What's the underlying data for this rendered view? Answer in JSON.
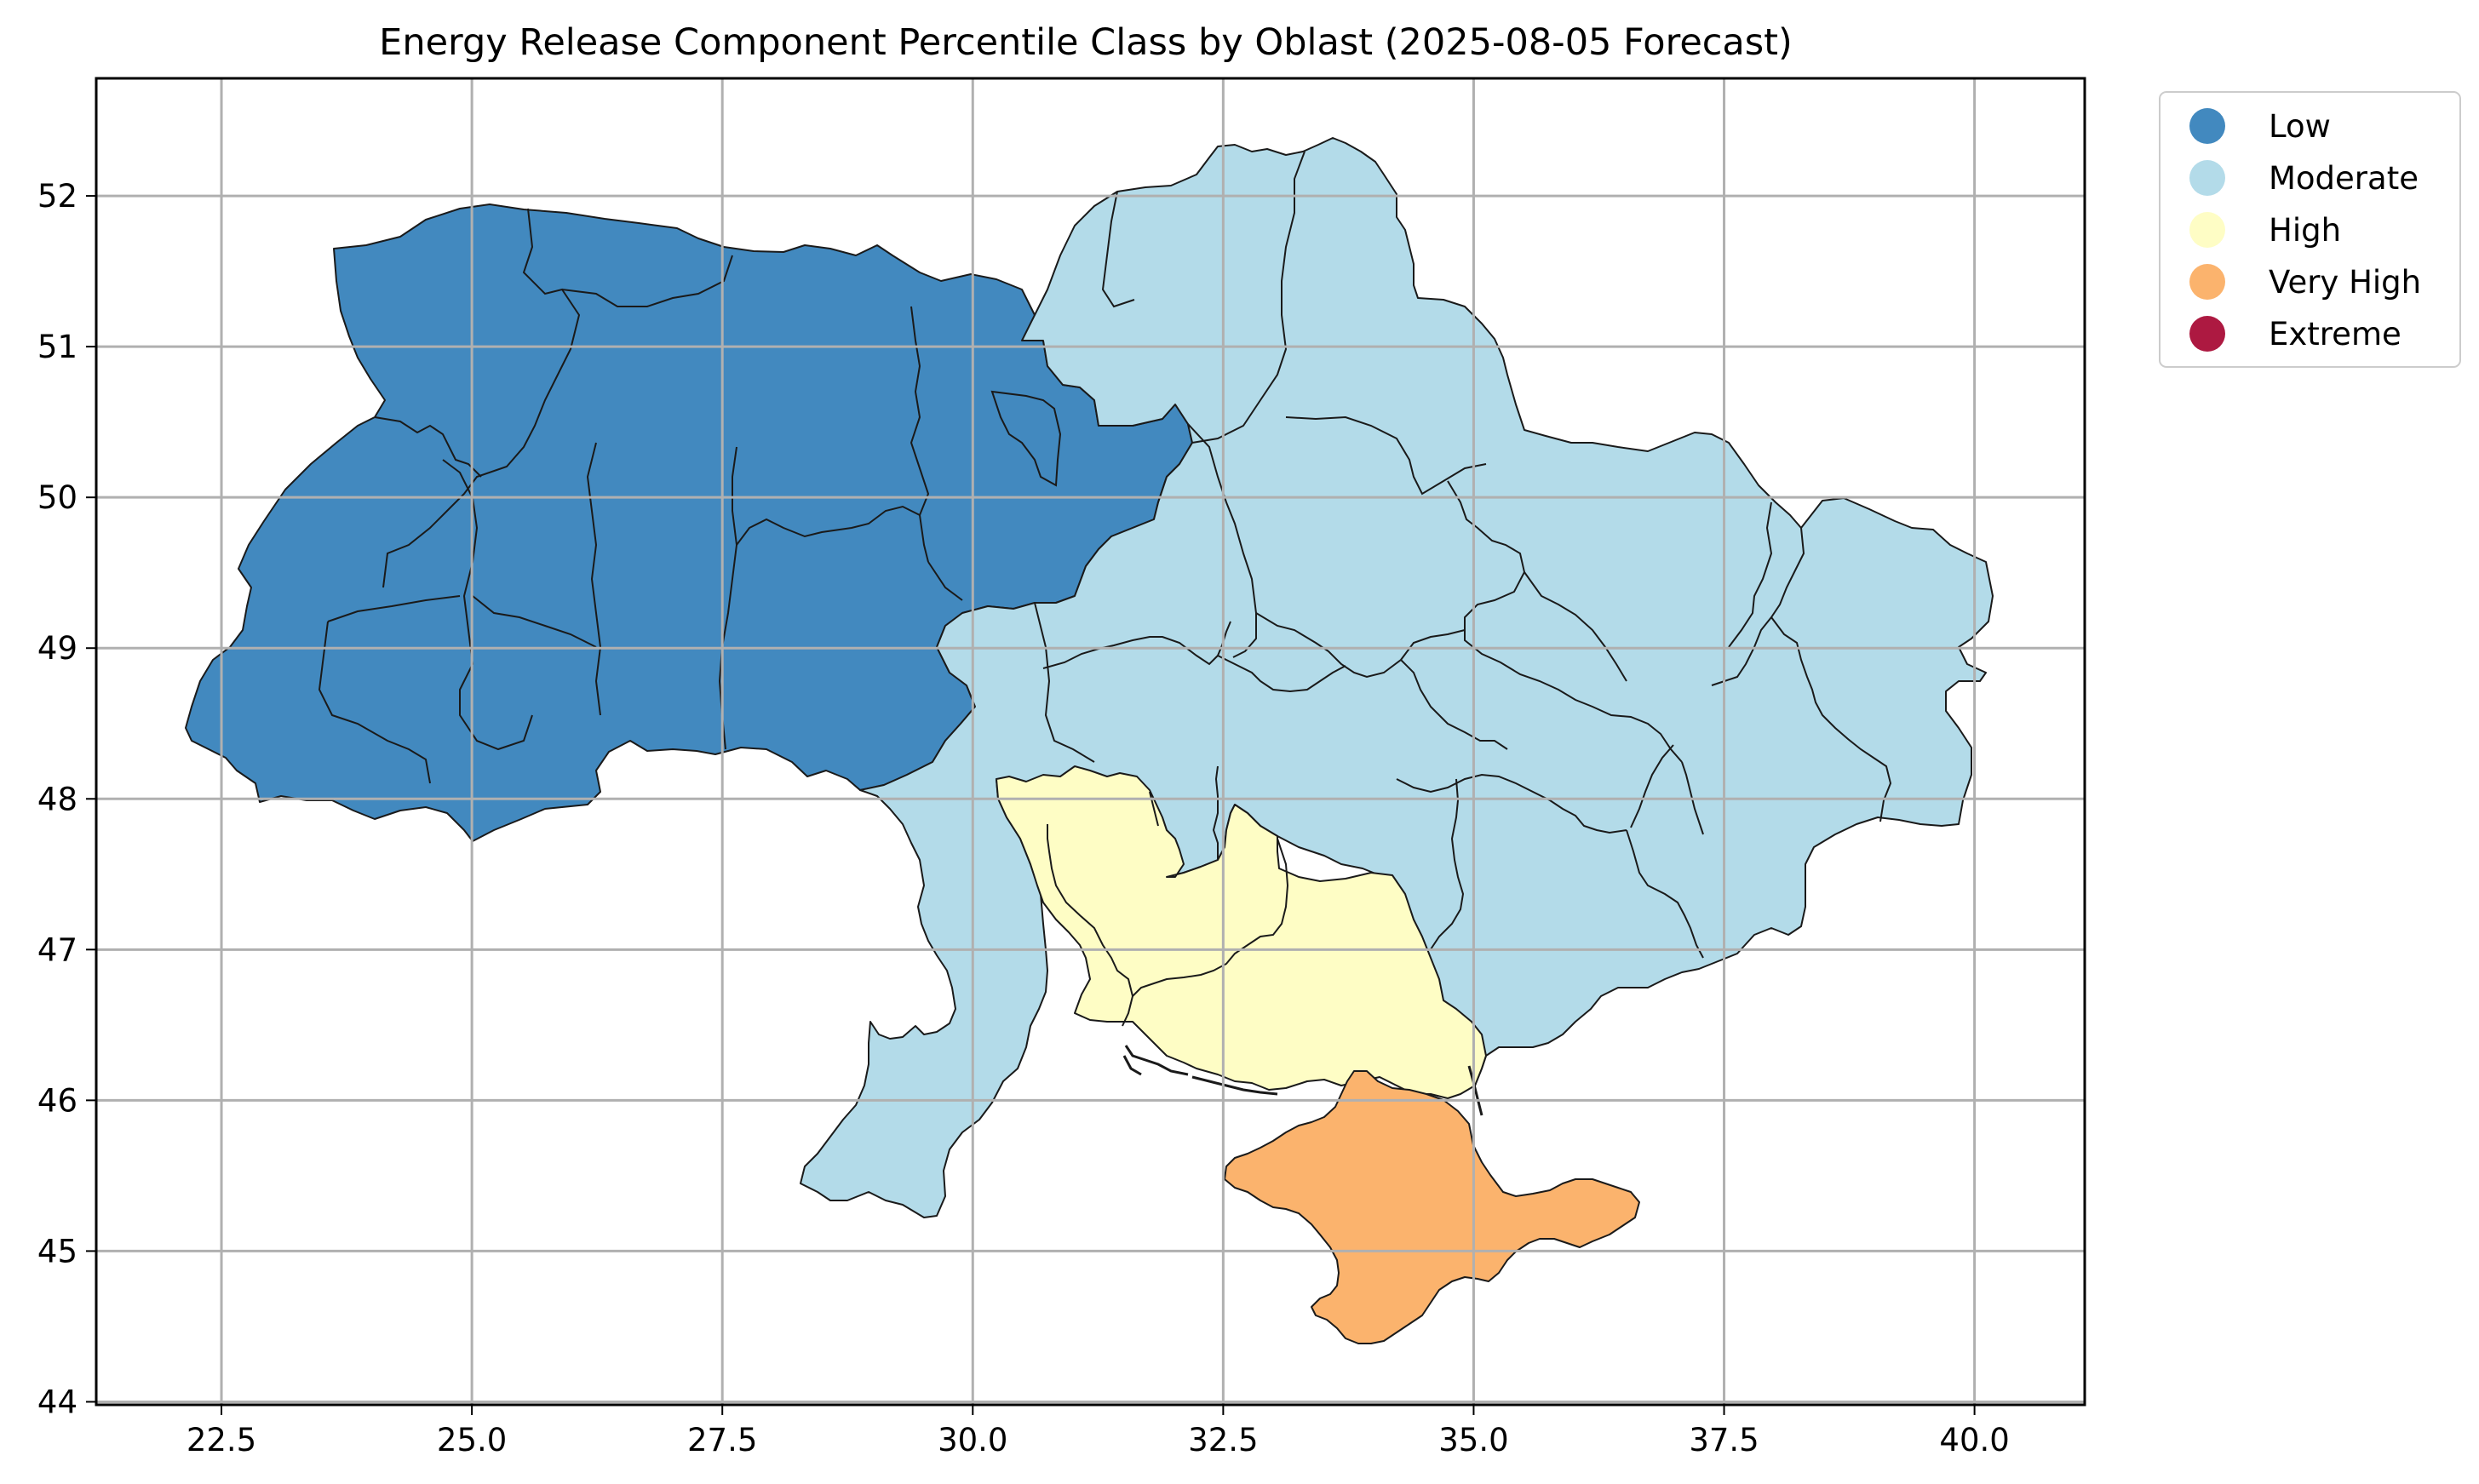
{
  "title": "Energy Release Component Percentile Class by Oblast (2025-08-05 Forecast)",
  "axes": {
    "x_ticks": [
      "22.5",
      "25.0",
      "27.5",
      "30.0",
      "32.5",
      "35.0",
      "37.5",
      "40.0"
    ],
    "y_ticks": [
      "44",
      "45",
      "46",
      "47",
      "48",
      "49",
      "50",
      "51",
      "52"
    ],
    "xlim": [
      21.25,
      41.1
    ],
    "ylim": [
      43.98,
      52.78
    ],
    "grid": true
  },
  "legend": {
    "placement": "outside-top-right",
    "items": [
      {
        "label": "Low",
        "color": "#4289bf"
      },
      {
        "label": "Moderate",
        "color": "#b3dbe9"
      },
      {
        "label": "High",
        "color": "#fefdc5"
      },
      {
        "label": "Very High",
        "color": "#fbb36d"
      },
      {
        "label": "Extreme",
        "color": "#ad1941"
      }
    ]
  },
  "class_colors": {
    "low": "#4289bf",
    "moderate": "#b3dbe9",
    "high": "#fefdc5",
    "very_high": "#fbb36d"
  }
}
